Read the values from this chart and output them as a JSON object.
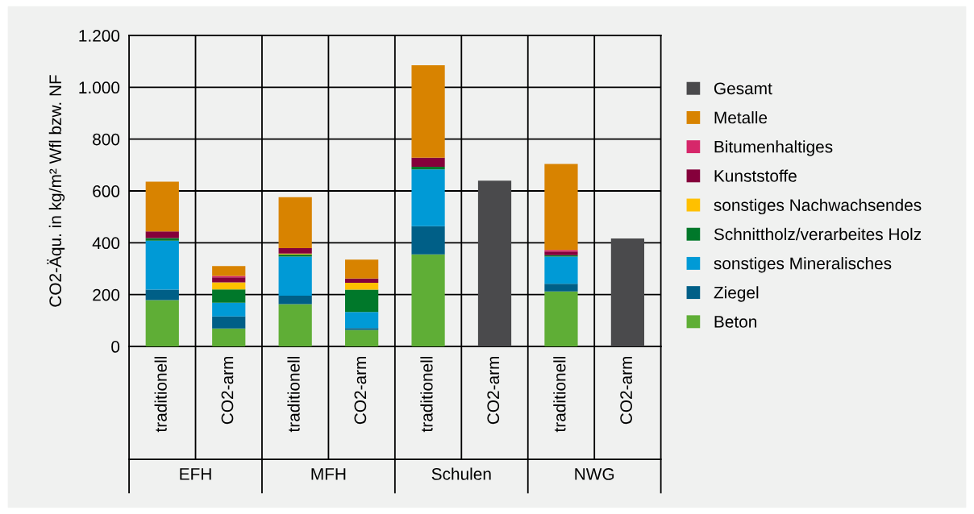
{
  "chart_data": {
    "type": "bar",
    "stacked": true,
    "ylabel": "CO2-Äqu. in kg/m² Wfl bzw. NF",
    "categories": [
      "traditionell",
      "CO2-arm",
      "traditionell",
      "CO2-arm",
      "traditionell",
      "CO2-arm",
      "traditionell",
      "CO2-arm"
    ],
    "annotations": [
      "EFH",
      "MFH",
      "Schulen",
      "NWG"
    ],
    "ylim": [
      0,
      1200
    ],
    "yticks": [
      0,
      200,
      400,
      600,
      800,
      {
        "value": 1000,
        "label": "1.000"
      },
      {
        "value": 1200,
        "label": "1.200"
      }
    ],
    "grid": true,
    "legend": "right",
    "series": [
      {
        "name": "Beton",
        "color": "#5fae36",
        "values": [
          179,
          69,
          163,
          64,
          355,
          null,
          212,
          null
        ]
      },
      {
        "name": "Ziegel",
        "color": "#005f87",
        "values": [
          40,
          47,
          33,
          7,
          109,
          null,
          30,
          null
        ]
      },
      {
        "name": "sonstiges Mineralisches",
        "color": "#009ad6",
        "values": [
          189,
          53,
          151,
          62,
          219,
          null,
          105,
          null
        ]
      },
      {
        "name": "Schnittholz/verarbeites Holz",
        "color": "#00782a",
        "values": [
          10,
          51,
          8,
          86,
          10,
          null,
          5,
          null
        ]
      },
      {
        "name": "sonstiges Nachwachsendes",
        "color": "#ffc000",
        "values": [
          null,
          27,
          3,
          27,
          null,
          null,
          null,
          null
        ]
      },
      {
        "name": "Kunststoffe",
        "color": "#85003b",
        "values": [
          26,
          20,
          21,
          16,
          35,
          null,
          14,
          null
        ]
      },
      {
        "name": "Bitumenhaltiges",
        "color": "#d6276a",
        "values": [
          null,
          5,
          null,
          null,
          null,
          null,
          6,
          null
        ]
      },
      {
        "name": "Metalle",
        "color": "#d88300",
        "values": [
          192,
          38,
          197,
          73,
          357,
          null,
          332,
          null
        ]
      },
      {
        "name": "Gesamt",
        "color": "#4a4a4c",
        "values": [
          null,
          null,
          null,
          null,
          null,
          640,
          null,
          417
        ]
      }
    ]
  }
}
